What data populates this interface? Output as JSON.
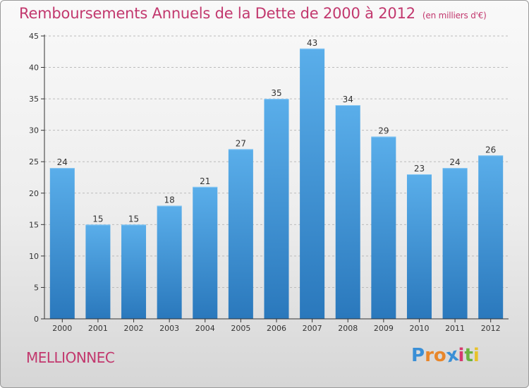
{
  "title": "Remboursements Annuels de la Dette de 2000 à 2012",
  "unit_note": "(en milliers d'€)",
  "city": "MELLIONNEC",
  "logo": {
    "letters": [
      "P",
      "r",
      "o",
      "x",
      "i",
      "t",
      "i"
    ],
    "colors": [
      "#3a8fd6",
      "#e8862a",
      "#e8862a",
      "#3a8fd6",
      "#d63a6e",
      "#6cb33f",
      "#e8c22a"
    ]
  },
  "colors": {
    "title": "#c2386e",
    "bar_top": "#5aaeea",
    "bar_bottom": "#2a78bc",
    "axis": "#333333",
    "grid": "#bbbbbb"
  },
  "chart_data": {
    "type": "bar",
    "title": "Remboursements Annuels de la Dette de 2000 à 2012",
    "categories": [
      "2000",
      "2001",
      "2002",
      "2003",
      "2004",
      "2005",
      "2006",
      "2007",
      "2008",
      "2009",
      "2010",
      "2011",
      "2012"
    ],
    "values": [
      24,
      15,
      15,
      18,
      21,
      27,
      35,
      43,
      34,
      29,
      23,
      24,
      26
    ],
    "xlabel": "",
    "ylabel": "",
    "ylim": [
      0,
      45
    ],
    "yticks": [
      0,
      5,
      10,
      15,
      20,
      25,
      30,
      35,
      40,
      45
    ],
    "grid": true,
    "data_labels": true
  }
}
